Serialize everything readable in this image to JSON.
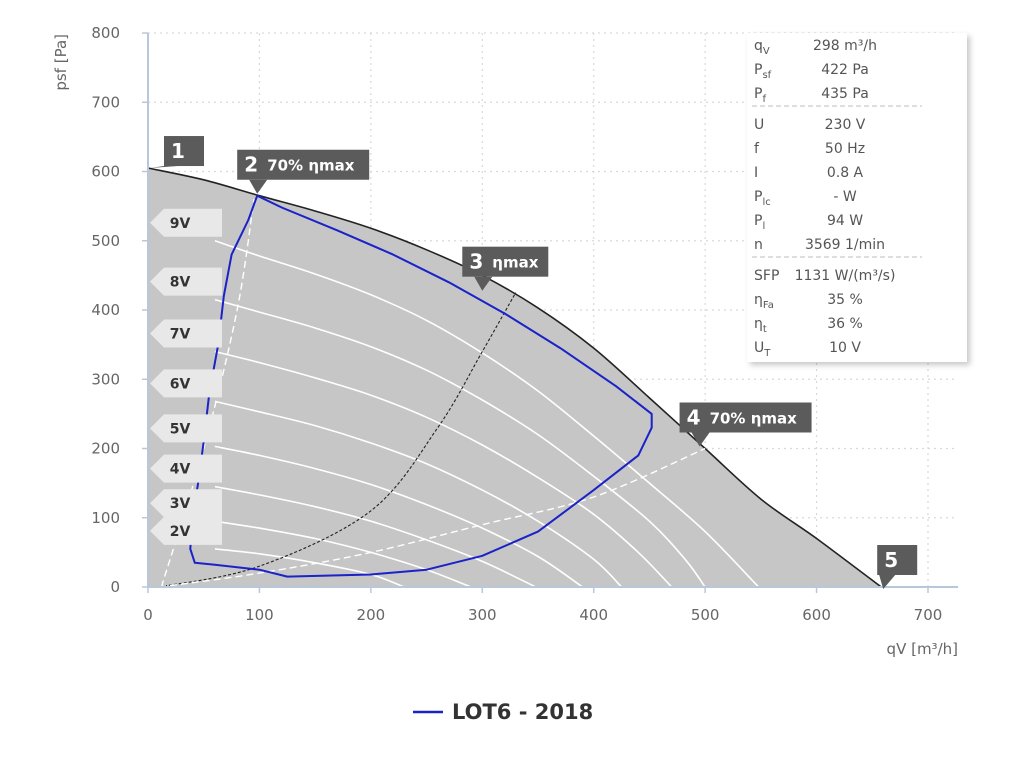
{
  "chart_data": {
    "type": "line",
    "xlabel": "qV [m³/h]",
    "ylabel": "psf [Pa]",
    "xlim": [
      0,
      730
    ],
    "ylim": [
      0,
      800
    ],
    "x_ticks": [
      0,
      100,
      200,
      300,
      400,
      500,
      600,
      700
    ],
    "y_ticks": [
      0,
      100,
      200,
      300,
      400,
      500,
      600,
      700,
      800
    ],
    "grid": true,
    "colors": {
      "envelope_fill": "#c6c6c6",
      "envelope_line": "#222222",
      "lot6_line": "#1a22c8",
      "marker_bg": "#5b5b5b",
      "voltage_label_bg": "#e8e8e8",
      "axis": "#b8c8da"
    },
    "envelope_curve": [
      [
        0,
        605
      ],
      [
        50,
        588
      ],
      [
        100,
        565
      ],
      [
        150,
        543
      ],
      [
        200,
        518
      ],
      [
        250,
        487
      ],
      [
        300,
        450
      ],
      [
        350,
        403
      ],
      [
        400,
        345
      ],
      [
        450,
        273
      ],
      [
        500,
        200
      ],
      [
        550,
        127
      ],
      [
        600,
        70
      ],
      [
        658,
        0
      ]
    ],
    "voltage_curves": [
      {
        "label": "9V",
        "points": [
          [
            60,
            500
          ],
          [
            100,
            478
          ],
          [
            150,
            452
          ],
          [
            200,
            422
          ],
          [
            250,
            385
          ],
          [
            300,
            338
          ],
          [
            350,
            283
          ],
          [
            400,
            218
          ],
          [
            450,
            150
          ],
          [
            500,
            80
          ],
          [
            548,
            0
          ]
        ]
      },
      {
        "label": "8V",
        "points": [
          [
            60,
            415
          ],
          [
            100,
            397
          ],
          [
            150,
            374
          ],
          [
            200,
            347
          ],
          [
            250,
            313
          ],
          [
            300,
            270
          ],
          [
            350,
            220
          ],
          [
            400,
            160
          ],
          [
            450,
            95
          ],
          [
            482,
            40
          ],
          [
            500,
            0
          ]
        ]
      },
      {
        "label": "7V",
        "points": [
          [
            60,
            340
          ],
          [
            100,
            324
          ],
          [
            150,
            302
          ],
          [
            200,
            277
          ],
          [
            250,
            245
          ],
          [
            300,
            205
          ],
          [
            350,
            158
          ],
          [
            400,
            105
          ],
          [
            440,
            50
          ],
          [
            470,
            0
          ]
        ]
      },
      {
        "label": "6V",
        "points": [
          [
            60,
            268
          ],
          [
            100,
            253
          ],
          [
            150,
            233
          ],
          [
            200,
            208
          ],
          [
            250,
            178
          ],
          [
            300,
            140
          ],
          [
            350,
            95
          ],
          [
            400,
            40
          ],
          [
            425,
            0
          ]
        ]
      },
      {
        "label": "5V",
        "points": [
          [
            60,
            203
          ],
          [
            100,
            190
          ],
          [
            150,
            171
          ],
          [
            200,
            148
          ],
          [
            250,
            119
          ],
          [
            300,
            85
          ],
          [
            350,
            44
          ],
          [
            390,
            0
          ]
        ]
      },
      {
        "label": "4V",
        "points": [
          [
            60,
            145
          ],
          [
            100,
            133
          ],
          [
            150,
            116
          ],
          [
            200,
            95
          ],
          [
            250,
            68
          ],
          [
            300,
            37
          ],
          [
            348,
            0
          ]
        ]
      },
      {
        "label": "3V",
        "points": [
          [
            60,
            95
          ],
          [
            100,
            85
          ],
          [
            150,
            70
          ],
          [
            200,
            50
          ],
          [
            250,
            25
          ],
          [
            290,
            0
          ]
        ]
      },
      {
        "label": "2V",
        "points": [
          [
            60,
            55
          ],
          [
            100,
            48
          ],
          [
            150,
            35
          ],
          [
            200,
            18
          ],
          [
            230,
            0
          ]
        ]
      }
    ],
    "guide_curves": [
      {
        "name": "70% ηmax low",
        "style": "dashed-white",
        "points": [
          [
            12,
            0
          ],
          [
            50,
            200
          ],
          [
            80,
            400
          ],
          [
            95,
            560
          ]
        ]
      },
      {
        "name": "ηmax",
        "style": "dashed-black",
        "points": [
          [
            10,
            0
          ],
          [
            100,
            30
          ],
          [
            200,
            110
          ],
          [
            260,
            230
          ],
          [
            300,
            340
          ],
          [
            330,
            425
          ]
        ]
      },
      {
        "name": "70% ηmax high",
        "style": "dashed-white",
        "points": [
          [
            10,
            0
          ],
          [
            100,
            20
          ],
          [
            200,
            50
          ],
          [
            300,
            90
          ],
          [
            400,
            130
          ],
          [
            500,
            200
          ]
        ]
      }
    ],
    "series": [
      {
        "name": "LOT6 - 2018",
        "color": "#1a22c8",
        "points": [
          [
            98,
            565
          ],
          [
            90,
            530
          ],
          [
            75,
            480
          ],
          [
            68,
            420
          ],
          [
            63,
            350
          ],
          [
            55,
            280
          ],
          [
            50,
            210
          ],
          [
            45,
            150
          ],
          [
            40,
            100
          ],
          [
            38,
            55
          ],
          [
            42,
            35
          ],
          [
            60,
            32
          ],
          [
            100,
            25
          ],
          [
            125,
            15
          ],
          [
            200,
            18
          ],
          [
            250,
            25
          ],
          [
            300,
            45
          ],
          [
            350,
            80
          ],
          [
            400,
            140
          ],
          [
            440,
            190
          ],
          [
            452,
            230
          ],
          [
            452,
            250
          ],
          [
            420,
            290
          ],
          [
            370,
            345
          ],
          [
            320,
            395
          ],
          [
            270,
            440
          ],
          [
            220,
            480
          ],
          [
            170,
            515
          ],
          [
            120,
            548
          ],
          [
            98,
            565
          ]
        ]
      }
    ],
    "markers": [
      {
        "num": "1",
        "text": "",
        "x": 0,
        "y": 605
      },
      {
        "num": "2",
        "text": "70% ηmax",
        "x": 98,
        "y": 565
      },
      {
        "num": "3",
        "text": "ηmax",
        "x": 300,
        "y": 425
      },
      {
        "num": "4",
        "text": "70% ηmax",
        "x": 495,
        "y": 200
      },
      {
        "num": "5",
        "text": "",
        "x": 658,
        "y": 0
      }
    ]
  },
  "info_panel": {
    "rows": [
      {
        "name": "q",
        "sub": "V",
        "value": "298 m³/h"
      },
      {
        "name": "P",
        "sub": "sf",
        "value": "422 Pa"
      },
      {
        "name": "P",
        "sub": "f",
        "value": "435 Pa",
        "sep_after": true
      },
      {
        "name": "U",
        "sub": "",
        "value": "230 V"
      },
      {
        "name": "f",
        "sub": "",
        "value": "50 Hz"
      },
      {
        "name": "I",
        "sub": "",
        "value": "0.8 A"
      },
      {
        "name": "P",
        "sub": "lc",
        "value": "- W"
      },
      {
        "name": "P",
        "sub": "l",
        "value": "94 W"
      },
      {
        "name": "n",
        "sub": "",
        "value": "3569 1/min",
        "sep_after": true
      },
      {
        "name": "SFP",
        "sub": "",
        "value": "1131 W/(m³/s)"
      },
      {
        "name": "η",
        "sub": "Fa",
        "value": "35 %"
      },
      {
        "name": "η",
        "sub": "t",
        "value": "36 %"
      },
      {
        "name": "U",
        "sub": "T",
        "value": "10 V"
      }
    ]
  },
  "legend": {
    "label": "LOT6 - 2018",
    "color": "#1a22c8"
  }
}
